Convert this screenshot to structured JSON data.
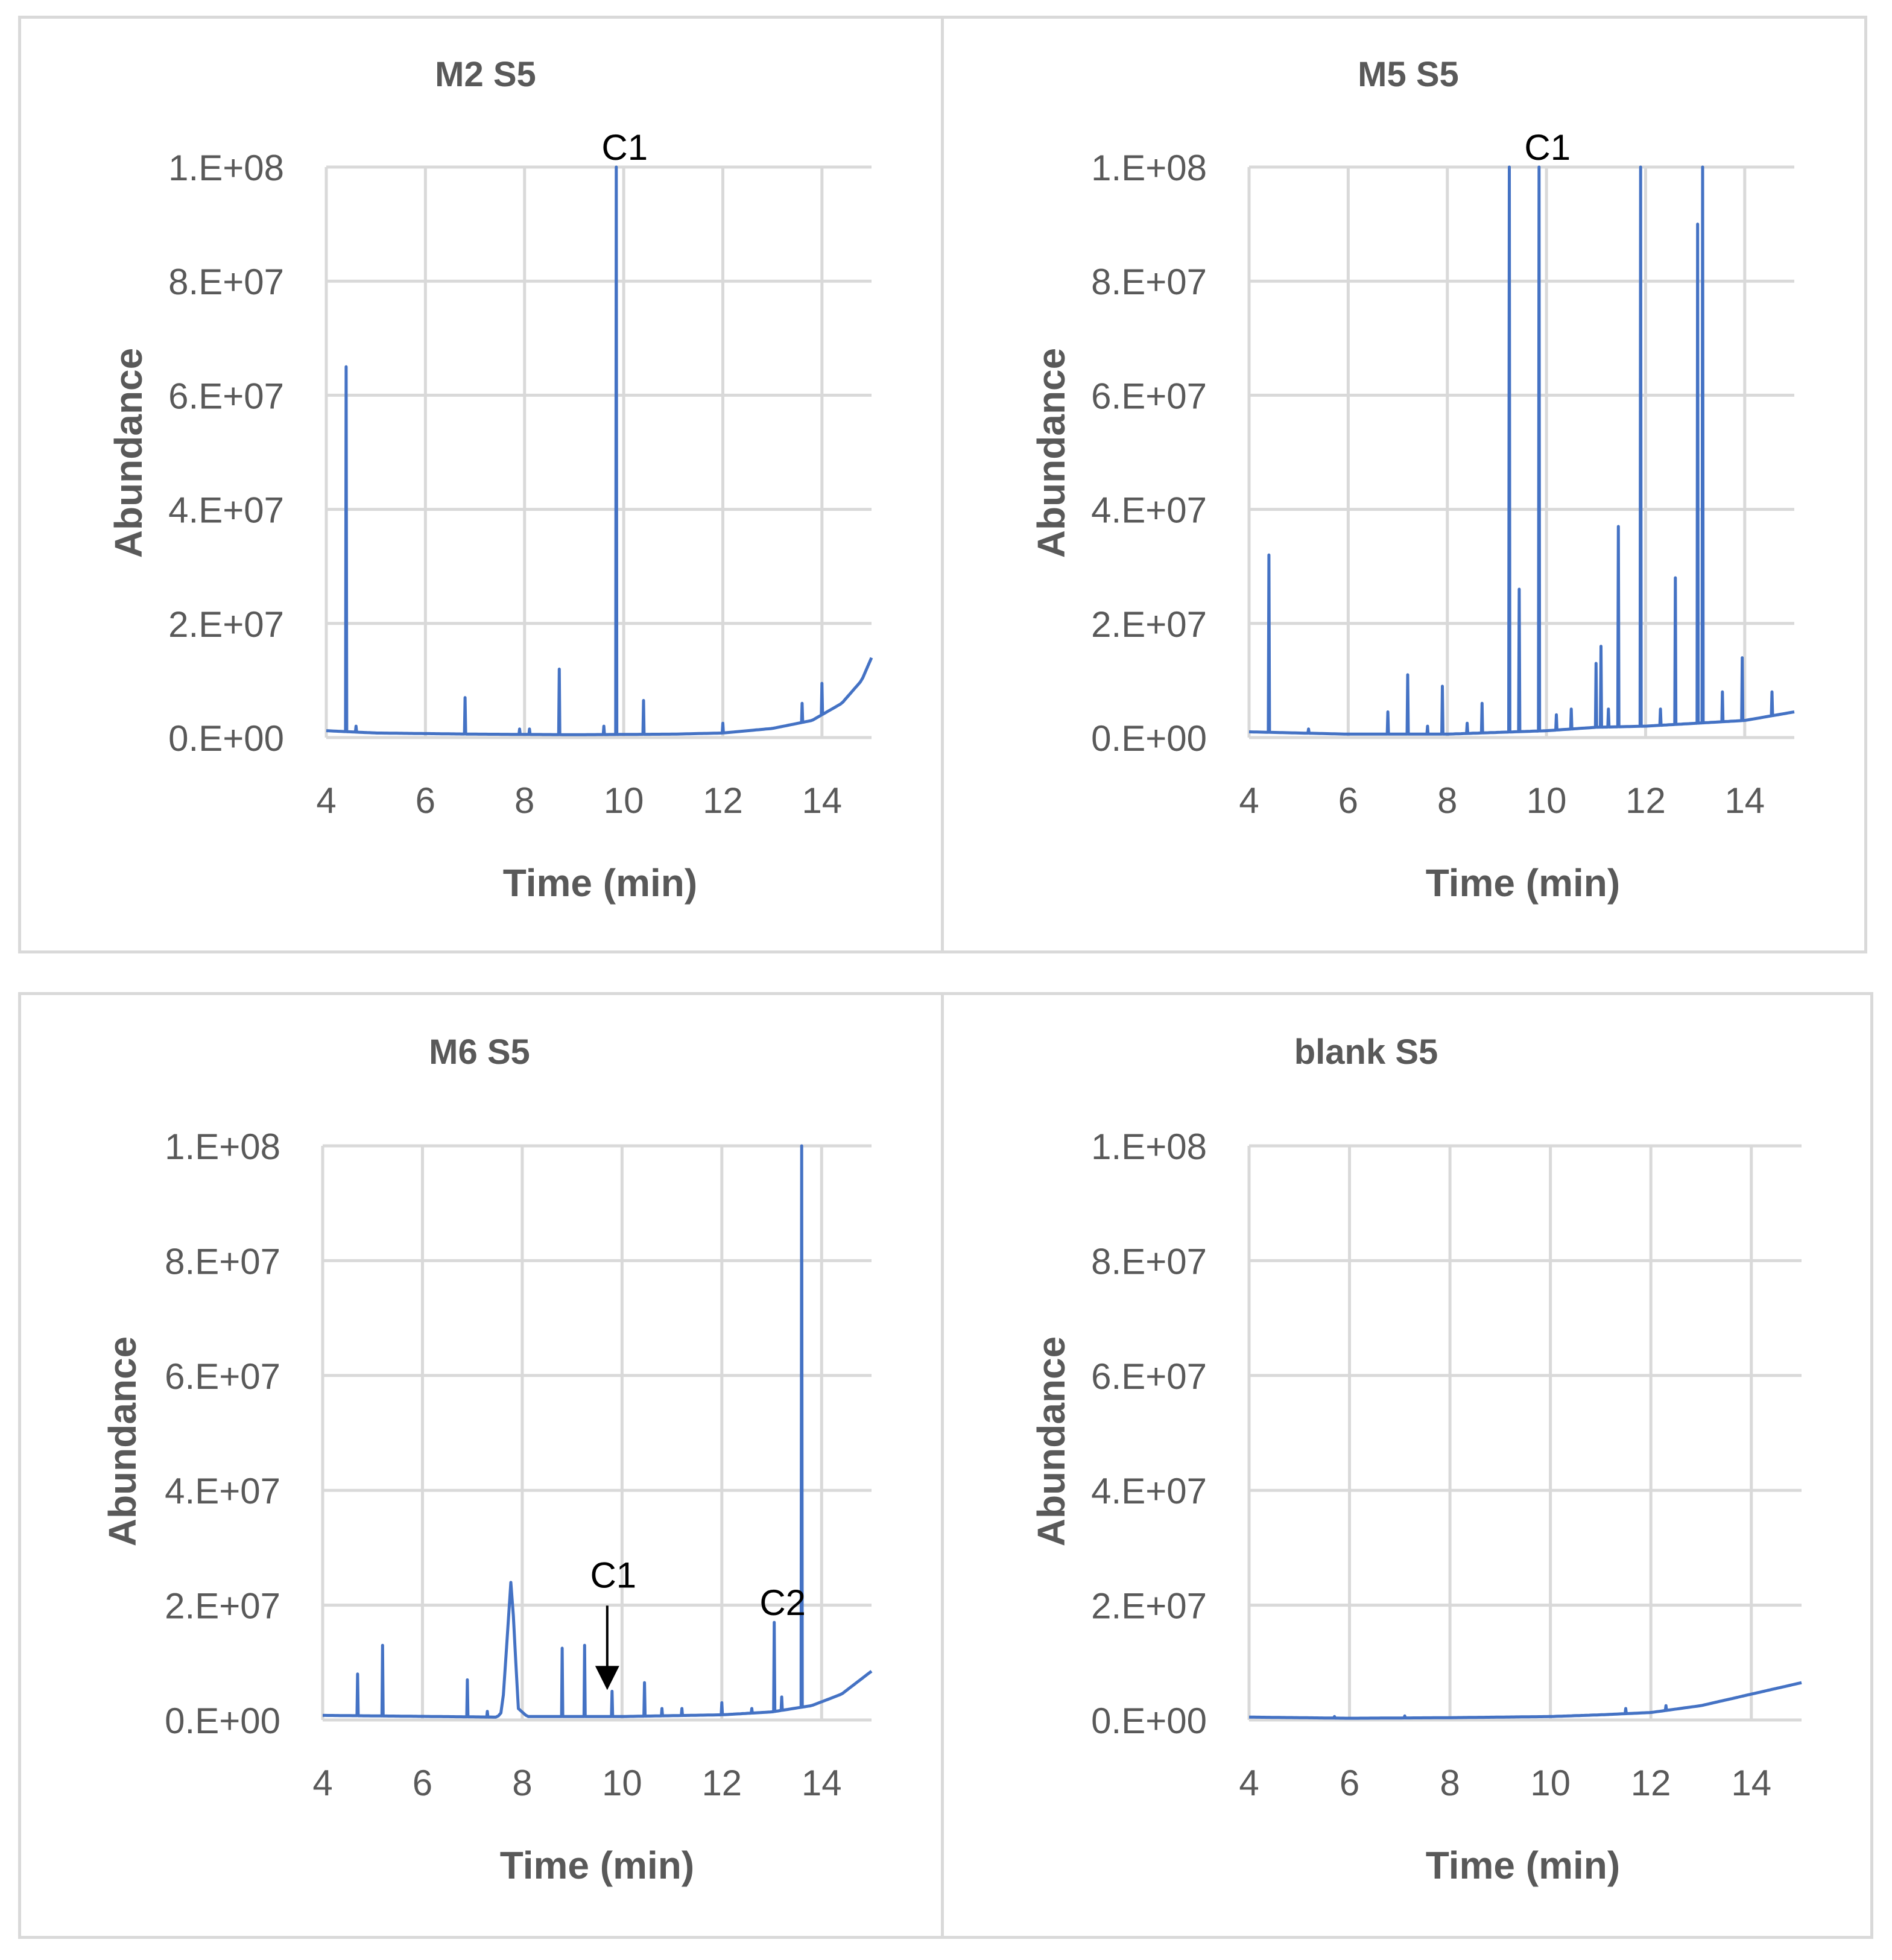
{
  "figure": {
    "colors": {
      "series": "#4472c4",
      "grid": "#d9d9d9",
      "text": "#595959",
      "annotation": "#000000"
    }
  },
  "chart_data": [
    {
      "type": "line",
      "title": "M2 S5",
      "xlabel": "Time (min)",
      "ylabel": "Abundance",
      "xlim": [
        4,
        15
      ],
      "ylim": [
        0,
        100000000
      ],
      "x_ticks": [
        4,
        6,
        8,
        10,
        12,
        14
      ],
      "y_ticks": [
        0,
        20000000,
        40000000,
        60000000,
        80000000,
        100000000
      ],
      "x_tick_labels": [
        "4",
        "6",
        "8",
        "10",
        "12",
        "14"
      ],
      "y_tick_labels": [
        "0.E+00",
        "2.E+07",
        "4.E+07",
        "6.E+07",
        "8.E+07",
        "1.E+08"
      ],
      "grid": true,
      "series": [
        {
          "name": "M2 S5",
          "baseline": [
            [
              4,
              1200000
            ],
            [
              5,
              800000
            ],
            [
              7,
              600000
            ],
            [
              9,
              500000
            ],
            [
              11,
              600000
            ],
            [
              12,
              800000
            ],
            [
              13,
              1600000
            ],
            [
              13.8,
              3000000
            ],
            [
              14.4,
              6000000
            ],
            [
              14.8,
              10000000
            ],
            [
              15,
              14000000
            ]
          ],
          "peaks": [
            [
              4.4,
              65000000
            ],
            [
              4.6,
              2000000
            ],
            [
              6.8,
              7000000
            ],
            [
              7.9,
              1500000
            ],
            [
              8.1,
              1500000
            ],
            [
              8.7,
              12000000
            ],
            [
              9.6,
              2000000
            ],
            [
              9.85,
              100000000
            ],
            [
              10.4,
              6500000
            ],
            [
              12,
              2500000
            ],
            [
              13.6,
              6000000
            ],
            [
              14,
              9500000
            ]
          ]
        }
      ],
      "annotations": [
        {
          "text": "C1",
          "x": 9.85,
          "y": 100000000,
          "arrow": false
        }
      ]
    },
    {
      "type": "line",
      "title": "M5 S5",
      "xlabel": "Time (min)",
      "ylabel": "Abundance",
      "xlim": [
        4,
        15
      ],
      "ylim": [
        0,
        100000000
      ],
      "x_ticks": [
        4,
        6,
        8,
        10,
        12,
        14
      ],
      "y_ticks": [
        0,
        20000000,
        40000000,
        60000000,
        80000000,
        100000000
      ],
      "x_tick_labels": [
        "4",
        "6",
        "8",
        "10",
        "12",
        "14"
      ],
      "y_tick_labels": [
        "0.E+00",
        "2.E+07",
        "4.E+07",
        "6.E+07",
        "8.E+07",
        "1.E+08"
      ],
      "grid": true,
      "series": [
        {
          "name": "M5 S5",
          "baseline": [
            [
              4,
              1000000
            ],
            [
              6,
              600000
            ],
            [
              8,
              600000
            ],
            [
              10,
              1200000
            ],
            [
              11,
              1800000
            ],
            [
              12,
              2000000
            ],
            [
              13,
              2500000
            ],
            [
              14,
              3000000
            ],
            [
              15,
              4500000
            ]
          ],
          "peaks": [
            [
              4.4,
              32000000
            ],
            [
              5.2,
              1500000
            ],
            [
              6.8,
              4500000
            ],
            [
              7.2,
              11000000
            ],
            [
              7.6,
              2000000
            ],
            [
              7.9,
              9000000
            ],
            [
              8.4,
              2500000
            ],
            [
              8.7,
              6000000
            ],
            [
              9.25,
              100000000
            ],
            [
              9.45,
              26000000
            ],
            [
              9.85,
              100000000
            ],
            [
              10.2,
              4000000
            ],
            [
              10.5,
              5000000
            ],
            [
              11,
              13000000
            ],
            [
              11.1,
              16000000
            ],
            [
              11.25,
              5000000
            ],
            [
              11.45,
              37000000
            ],
            [
              11.9,
              100000000
            ],
            [
              12.3,
              5000000
            ],
            [
              12.6,
              28000000
            ],
            [
              13.05,
              90000000
            ],
            [
              13.15,
              100000000
            ],
            [
              13.55,
              8000000
            ],
            [
              13.95,
              14000000
            ],
            [
              14.55,
              8000000
            ]
          ]
        }
      ],
      "annotations": [
        {
          "text": "C1",
          "x": 9.85,
          "y": 100000000,
          "arrow": false
        }
      ]
    },
    {
      "type": "line",
      "title": "M6 S5",
      "xlabel": "Time (min)",
      "ylabel": "Abundance",
      "xlim": [
        4,
        15
      ],
      "ylim": [
        0,
        100000000
      ],
      "x_ticks": [
        4,
        6,
        8,
        10,
        12,
        14
      ],
      "y_ticks": [
        0,
        20000000,
        40000000,
        60000000,
        80000000,
        100000000
      ],
      "x_tick_labels": [
        "4",
        "6",
        "8",
        "10",
        "12",
        "14"
      ],
      "y_tick_labels": [
        "0.E+00",
        "2.E+07",
        "4.E+07",
        "6.E+07",
        "8.E+07",
        "1.E+08"
      ],
      "grid": true,
      "series": [
        {
          "name": "M6 S5",
          "baseline": [
            [
              4,
              800000
            ],
            [
              7.5,
              500000
            ],
            [
              7.6,
              1500000
            ],
            [
              7.78,
              25000000
            ],
            [
              7.92,
              2000000
            ],
            [
              8.1,
              600000
            ],
            [
              10,
              600000
            ],
            [
              12,
              900000
            ],
            [
              13,
              1400000
            ],
            [
              13.8,
              2500000
            ],
            [
              14.4,
              4500000
            ],
            [
              15,
              8500000
            ]
          ],
          "peaks": [
            [
              4.7,
              8000000
            ],
            [
              5.2,
              13000000
            ],
            [
              6.9,
              7000000
            ],
            [
              7.3,
              1500000
            ],
            [
              8.8,
              12500000
            ],
            [
              9.25,
              13000000
            ],
            [
              9.8,
              5000000
            ],
            [
              10.45,
              6500000
            ],
            [
              10.8,
              2000000
            ],
            [
              11.2,
              2000000
            ],
            [
              12,
              3000000
            ],
            [
              12.6,
              2000000
            ],
            [
              13.05,
              17000000
            ],
            [
              13.2,
              4000000
            ],
            [
              13.6,
              100000000
            ]
          ]
        }
      ],
      "annotations": [
        {
          "text": "C1",
          "x": 9.8,
          "y": 5000000,
          "arrow": true
        },
        {
          "text": "C2",
          "x": 13.05,
          "y": 17000000,
          "arrow": false
        }
      ]
    },
    {
      "type": "line",
      "title": "blank S5",
      "xlabel": "Time (min)",
      "ylabel": "Abundance",
      "xlim": [
        4,
        15
      ],
      "ylim": [
        0,
        100000000
      ],
      "x_ticks": [
        4,
        6,
        8,
        10,
        12,
        14
      ],
      "y_ticks": [
        0,
        20000000,
        40000000,
        60000000,
        80000000,
        100000000
      ],
      "x_tick_labels": [
        "4",
        "6",
        "8",
        "10",
        "12",
        "14"
      ],
      "y_tick_labels": [
        "0.E+00",
        "2.E+07",
        "4.E+07",
        "6.E+07",
        "8.E+07",
        "1.E+08"
      ],
      "grid": true,
      "series": [
        {
          "name": "blank S5",
          "baseline": [
            [
              4,
              500000
            ],
            [
              6,
              300000
            ],
            [
              8,
              400000
            ],
            [
              10,
              600000
            ],
            [
              11,
              900000
            ],
            [
              12,
              1300000
            ],
            [
              13,
              2500000
            ],
            [
              14,
              4500000
            ],
            [
              15,
              6500000
            ]
          ],
          "peaks": [
            [
              5.7,
              600000
            ],
            [
              7.1,
              700000
            ],
            [
              11.5,
              2000000
            ],
            [
              12.3,
              2500000
            ]
          ]
        }
      ],
      "annotations": []
    }
  ]
}
